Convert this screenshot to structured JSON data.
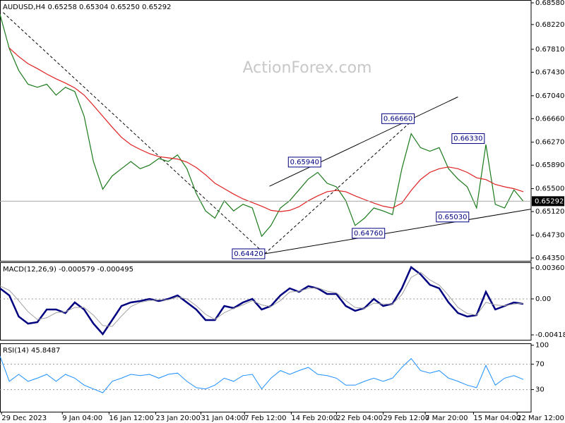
{
  "chart_data": [
    {
      "type": "line",
      "title": "AUDUSD,H4 0.65258 0.65304 0.65250 0.65292",
      "watermark": "ActionForex.com",
      "x": [
        0,
        6,
        12,
        18,
        24,
        30,
        36,
        42,
        48,
        54,
        60,
        66,
        72,
        78,
        84,
        90,
        96,
        102,
        108,
        114,
        120,
        126,
        132,
        138,
        144,
        150,
        156,
        162,
        168,
        174,
        180,
        186,
        192,
        198,
        204,
        210,
        216,
        222,
        228,
        234,
        240,
        246,
        252,
        258,
        264,
        270,
        276,
        282,
        288,
        294,
        300,
        306,
        312,
        318,
        324,
        330,
        336
      ],
      "xlim": [
        0,
        341
      ],
      "xticks": [
        {
          "value": 1,
          "label": "29 Dec 2023"
        },
        {
          "value": 40,
          "label": "9 Jan 04:00"
        },
        {
          "value": 70,
          "label": "16 Jan 12:00"
        },
        {
          "value": 100,
          "label": "23 Jan 20:00"
        },
        {
          "value": 129,
          "label": "31 Jan 04:00"
        },
        {
          "value": 157,
          "label": "7 Feb 12:00"
        },
        {
          "value": 187,
          "label": "14 Feb 20:00"
        },
        {
          "value": 216,
          "label": "22 Feb 04:00"
        },
        {
          "value": 246,
          "label": "29 Feb 12:00"
        },
        {
          "value": 273,
          "label": "7 Mar 20:00"
        },
        {
          "value": 304,
          "label": "15 Mar 04:00"
        },
        {
          "value": 332,
          "label": "22 Mar 12:00"
        }
      ],
      "ylim": [
        0.64303,
        0.68627
      ],
      "yticks": [
        {
          "value": 0.6858,
          "label": "0.68580"
        },
        {
          "value": 0.6822,
          "label": "0.68220"
        },
        {
          "value": 0.6781,
          "label": "0.67810"
        },
        {
          "value": 0.6743,
          "label": "0.67430"
        },
        {
          "value": 0.6704,
          "label": "0.67040"
        },
        {
          "value": 0.6666,
          "label": "0.66660"
        },
        {
          "value": 0.6627,
          "label": "0.66270"
        },
        {
          "value": 0.6589,
          "label": "0.65890"
        },
        {
          "value": 0.655,
          "label": "0.65500"
        },
        {
          "value": 0.6512,
          "label": "0.65120"
        },
        {
          "value": 0.6473,
          "label": "0.64730"
        },
        {
          "value": 0.6435,
          "label": "0.64350"
        }
      ],
      "series": [
        {
          "color": "#1a7a1a",
          "values": [
            0.6839,
            0.6782,
            0.6746,
            0.6723,
            0.6718,
            0.6723,
            0.6705,
            0.6718,
            0.6711,
            0.667,
            0.6595,
            0.6549,
            0.6571,
            0.6583,
            0.6595,
            0.6583,
            0.6589,
            0.66,
            0.6595,
            0.6606,
            0.6583,
            0.6542,
            0.6513,
            0.6501,
            0.653,
            0.6513,
            0.6524,
            0.6518,
            0.6471,
            0.6489,
            0.6518,
            0.653,
            0.6548,
            0.6566,
            0.6577,
            0.6559,
            0.6553,
            0.653,
            0.6489,
            0.6501,
            0.6518,
            0.6513,
            0.6507,
            0.6583,
            0.6641,
            0.6618,
            0.6612,
            0.6618,
            0.6583,
            0.6566,
            0.6553,
            0.6518,
            0.6623,
            0.6524,
            0.6518,
            0.6548,
            0.6529
          ]
        },
        {
          "color": "#e02020",
          "values": [
            null,
            0.6783,
            0.6769,
            0.6757,
            0.6749,
            0.674,
            0.6732,
            0.6725,
            0.6717,
            0.6705,
            0.6688,
            0.667,
            0.6652,
            0.6635,
            0.6623,
            0.6615,
            0.6608,
            0.6603,
            0.6601,
            0.6599,
            0.6594,
            0.6585,
            0.6573,
            0.6559,
            0.655,
            0.6541,
            0.6533,
            0.6527,
            0.6521,
            0.6514,
            0.6512,
            0.6514,
            0.652,
            0.653,
            0.6538,
            0.6545,
            0.6547,
            0.6545,
            0.6538,
            0.6532,
            0.6526,
            0.6521,
            0.6518,
            0.6526,
            0.6547,
            0.6565,
            0.6577,
            0.6583,
            0.6586,
            0.6583,
            0.6577,
            0.6568,
            0.6565,
            0.6557,
            0.6553,
            0.655,
            0.6545
          ]
        }
      ],
      "current_price": {
        "value": 0.65292,
        "label": "0.65292"
      },
      "annotations": [
        {
          "x": 170,
          "y": {
            "value": 0.6442,
            "label": "0.64420"
          }
        },
        {
          "x": 206,
          "y": {
            "value": 0.6594,
            "label": "0.65940"
          }
        },
        {
          "x": 266,
          "y": {
            "value": 0.6666,
            "label": "0.66660"
          }
        },
        {
          "x": 247,
          "y": {
            "value": 0.6476,
            "label": "0.64760"
          }
        },
        {
          "x": 311,
          "y": {
            "value": 0.6633,
            "label": "0.66330"
          }
        },
        {
          "x": 301,
          "y": {
            "value": 0.6503,
            "label": "0.65030"
          }
        }
      ],
      "trendlines": [
        {
          "style": "solid",
          "x": [
            170,
            341
          ],
          "y": [
            0.6442,
            0.6516
          ]
        },
        {
          "style": "solid",
          "x": [
            173,
            294
          ],
          "y": [
            0.6554,
            0.6702
          ]
        },
        {
          "style": "dashed",
          "x": [
            2,
            170
          ],
          "y": [
            0.6842,
            0.6442
          ]
        },
        {
          "style": "dashed",
          "x": [
            170,
            266
          ],
          "y": [
            0.6442,
            0.6666
          ]
        }
      ]
    },
    {
      "type": "line",
      "title": "MACD(12,26,9) -0.000579 -0.000495",
      "x": [
        0,
        6,
        12,
        18,
        24,
        30,
        36,
        42,
        48,
        54,
        60,
        66,
        72,
        78,
        84,
        90,
        96,
        102,
        108,
        114,
        120,
        126,
        132,
        138,
        144,
        150,
        156,
        162,
        168,
        174,
        180,
        186,
        192,
        198,
        204,
        210,
        216,
        222,
        228,
        234,
        240,
        246,
        252,
        258,
        264,
        270,
        276,
        282,
        288,
        294,
        300,
        306,
        312,
        318,
        324,
        330,
        336
      ],
      "xlim": [
        0,
        341
      ],
      "ylim": [
        -0.00476,
        0.00426
      ],
      "yticks": [
        0.003602,
        {
          "value": 0,
          "label": "0.00"
        },
        -0.004188
      ],
      "levels": [
        0
      ],
      "series": [
        {
          "color": "#000080",
          "width": 2.5,
          "values": [
            0.00123,
            0.00041,
            -0.00205,
            -0.00287,
            -0.00271,
            -0.00123,
            -0.00123,
            -0.00164,
            -0.00041,
            -0.00123,
            -0.00287,
            -0.0041,
            -0.00246,
            -0.00082,
            -0.00041,
            -0.00025,
            0,
            -0.00025,
            0,
            0.00041,
            -0.00041,
            -0.00123,
            -0.00246,
            -0.00246,
            -0.00082,
            -0.00107,
            -0.00041,
            0,
            -0.00123,
            -0.00082,
            0.00041,
            0.00123,
            0.00082,
            0.00148,
            0.00123,
            0.00057,
            0.00057,
            -0.00082,
            -0.00139,
            -0.00107,
            0,
            -0.00082,
            -0.00057,
            0.00123,
            0.00369,
            0.00287,
            0.00164,
            0.00123,
            -0.00041,
            -0.00164,
            -0.00205,
            -0.00189,
            0.00082,
            -0.00123,
            -0.00082,
            -0.00041,
            -0.00058
          ]
        },
        {
          "color": "#a0a0a0",
          "width": 1,
          "values": [
            0.0015,
            0.001,
            -0.0002,
            -0.0015,
            -0.0024,
            -0.0022,
            -0.0016,
            -0.0015,
            -0.001,
            -0.001,
            -0.0019,
            -0.0031,
            -0.0032,
            -0.002,
            -0.0009,
            -0.0004,
            -0.0002,
            -0.0001,
            -0.0001,
            0.0002,
            0.0,
            -0.0008,
            -0.0018,
            -0.0024,
            -0.0016,
            -0.0011,
            -0.0007,
            -0.0002,
            -0.0007,
            -0.0009,
            -0.0002,
            0.0008,
            0.0009,
            0.0012,
            0.0013,
            0.0009,
            0.0007,
            -0.0002,
            -0.001,
            -0.0011,
            -0.0005,
            -0.0006,
            -0.0006,
            0.0005,
            0.0025,
            0.0031,
            0.0022,
            0.0016,
            0.0004,
            -0.001,
            -0.0017,
            -0.0019,
            -0.0004,
            -0.0007,
            -0.0008,
            -0.0006,
            -0.0005
          ]
        }
      ]
    },
    {
      "type": "line",
      "title": "RSI(14) 45.8487",
      "x": [
        0,
        6,
        12,
        18,
        24,
        30,
        36,
        42,
        48,
        54,
        60,
        66,
        72,
        78,
        84,
        90,
        96,
        102,
        108,
        114,
        120,
        126,
        132,
        138,
        144,
        150,
        156,
        162,
        168,
        174,
        180,
        186,
        192,
        198,
        204,
        210,
        216,
        222,
        228,
        234,
        240,
        246,
        252,
        258,
        264,
        270,
        276,
        282,
        288,
        294,
        300,
        306,
        312,
        318,
        324,
        330,
        336
      ],
      "xlim": [
        0,
        341
      ],
      "ylim": [
        -5,
        103
      ],
      "yticks": [
        100,
        70,
        30
      ],
      "levels": [
        70,
        30
      ],
      "series": [
        {
          "color": "#1e90ff",
          "width": 1,
          "values": [
            83,
            43,
            54,
            43,
            48,
            54,
            43,
            54,
            48,
            37,
            31,
            25,
            43,
            48,
            54,
            52,
            54,
            48,
            54,
            56,
            43,
            33,
            31,
            37,
            48,
            43,
            52,
            54,
            31,
            48,
            60,
            54,
            60,
            65,
            54,
            52,
            48,
            37,
            37,
            43,
            48,
            43,
            48,
            65,
            79,
            60,
            56,
            60,
            48,
            43,
            37,
            33,
            68,
            37,
            48,
            52,
            46
          ]
        }
      ]
    }
  ]
}
